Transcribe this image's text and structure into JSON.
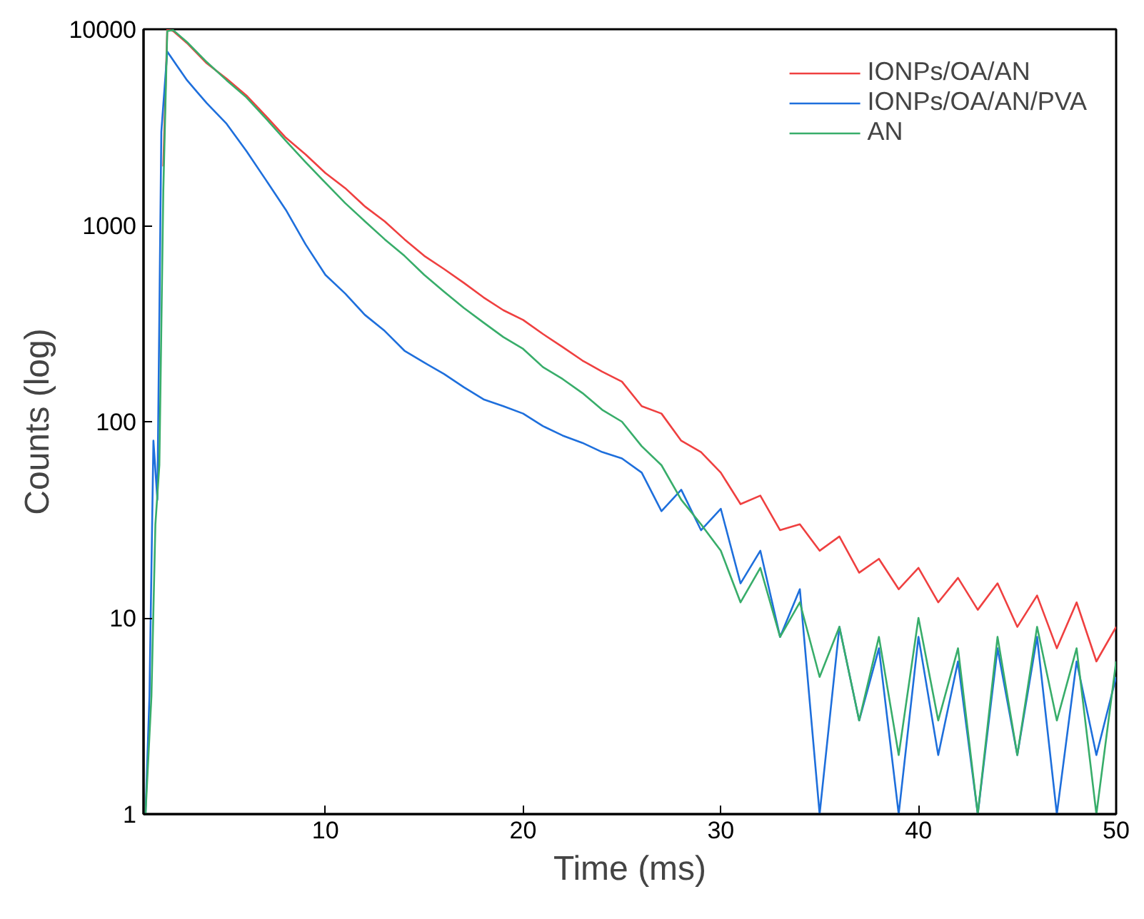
{
  "chart_data": {
    "type": "line",
    "xlabel": "Time (ms)",
    "ylabel": "Counts (log)",
    "log": "y",
    "xlim": [
      0.8,
      50
    ],
    "ylim": [
      1,
      10000
    ],
    "xticks": [
      10,
      20,
      30,
      40,
      50
    ],
    "yticks": [
      1,
      10,
      100,
      1000,
      10000
    ],
    "grid": false,
    "legend": "top right",
    "marker": "none",
    "line_style": "solid",
    "series": [
      {
        "name": "IONPs/OA/AN",
        "color": "#ef4040",
        "x": [
          1.8,
          2.0,
          2.3,
          3,
          4,
          5,
          6,
          7,
          8,
          9,
          10,
          11,
          12,
          13,
          14,
          15,
          16,
          17,
          18,
          19,
          20,
          21,
          22,
          23,
          24,
          25,
          26,
          27,
          28,
          29,
          30,
          31,
          32,
          33,
          34,
          35,
          36,
          37,
          38,
          39,
          40,
          41,
          42,
          43,
          44,
          45,
          46,
          47,
          48,
          49,
          50
        ],
        "values": [
          2000,
          10000,
          9800,
          8500,
          6700,
          5600,
          4600,
          3600,
          2800,
          2300,
          1850,
          1550,
          1250,
          1050,
          850,
          700,
          600,
          510,
          430,
          370,
          330,
          280,
          240,
          205,
          180,
          160,
          120,
          110,
          80,
          70,
          55,
          38,
          42,
          28,
          30,
          22,
          26,
          17,
          20,
          14,
          18,
          12,
          16,
          11,
          15,
          9,
          13,
          7,
          12,
          6,
          9
        ]
      },
      {
        "name": "IONPs/OA/AN/PVA",
        "color": "#1e6fdc",
        "x": [
          0.9,
          1.1,
          1.3,
          1.5,
          1.7,
          2.0,
          2.5,
          3,
          3.5,
          4,
          5,
          6,
          7,
          8,
          9,
          10,
          11,
          12,
          13,
          14,
          15,
          16,
          17,
          18,
          19,
          20,
          21,
          22,
          23,
          24,
          25,
          26,
          27,
          28,
          29,
          30,
          31,
          32,
          33,
          34,
          35,
          36,
          37,
          38,
          39,
          40,
          41,
          42,
          43,
          44,
          45,
          46,
          47,
          48,
          49,
          50
        ],
        "values": [
          1,
          4,
          80,
          40,
          3000,
          7700,
          6500,
          5500,
          4800,
          4200,
          3300,
          2400,
          1700,
          1200,
          800,
          560,
          450,
          350,
          290,
          230,
          200,
          175,
          150,
          130,
          120,
          110,
          95,
          85,
          78,
          70,
          65,
          55,
          35,
          45,
          28,
          36,
          15,
          22,
          8,
          14,
          1,
          9,
          3,
          7,
          1,
          8,
          2,
          6,
          1,
          7,
          2,
          8,
          1,
          6,
          2,
          5
        ]
      },
      {
        "name": "AN",
        "color": "#38ad6a",
        "x": [
          0.9,
          1.2,
          1.4,
          1.6,
          1.8,
          2.0,
          2.3,
          3,
          4,
          5,
          6,
          7,
          8,
          9,
          10,
          11,
          12,
          13,
          14,
          15,
          16,
          17,
          18,
          19,
          20,
          21,
          22,
          23,
          24,
          25,
          26,
          27,
          28,
          29,
          30,
          31,
          32,
          33,
          34,
          35,
          36,
          37,
          38,
          39,
          40,
          41,
          42,
          43,
          44,
          45,
          46,
          47,
          48,
          49,
          50
        ],
        "values": [
          1,
          4,
          30,
          60,
          1500,
          9800,
          9900,
          8600,
          6800,
          5500,
          4500,
          3500,
          2700,
          2100,
          1650,
          1300,
          1050,
          850,
          700,
          560,
          460,
          380,
          320,
          270,
          235,
          190,
          165,
          140,
          115,
          100,
          75,
          60,
          40,
          30,
          22,
          12,
          18,
          8,
          12,
          5,
          9,
          3,
          8,
          2,
          10,
          3,
          7,
          1,
          8,
          2,
          9,
          3,
          7,
          1,
          6
        ]
      }
    ]
  }
}
